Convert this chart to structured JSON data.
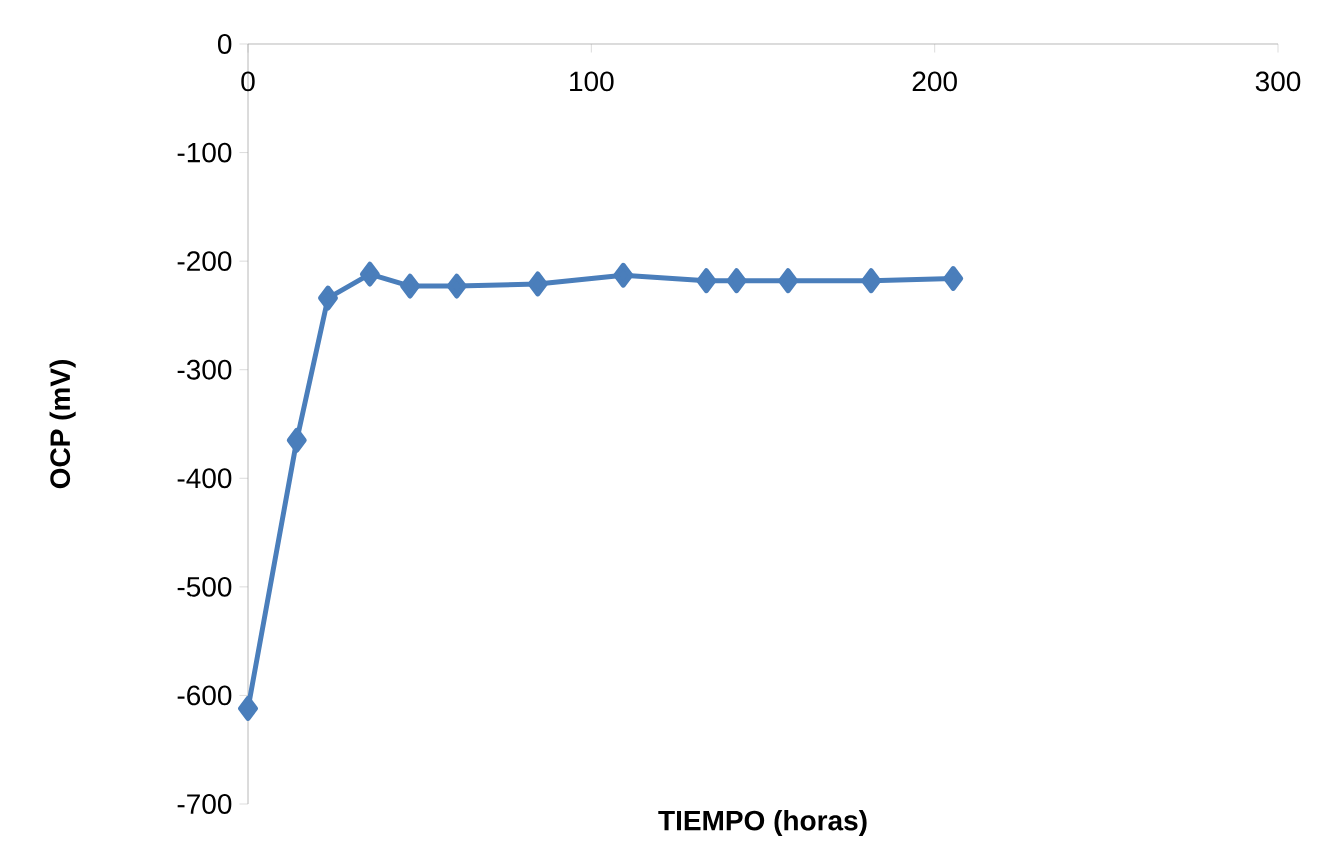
{
  "chart_data": {
    "type": "line",
    "xlabel": "TIEMPO (horas)",
    "ylabel": "OCP  (mV)",
    "x": [
      0,
      14.2,
      23.3,
      35.5,
      47.2,
      60.8,
      84.4,
      109.3,
      133.5,
      142.3,
      157.3,
      181.5,
      205.4
    ],
    "series": [
      {
        "color": "#4a7ebb",
        "values": [
          -612,
          -365,
          -234,
          -212,
          -223,
          -223,
          -221,
          -213,
          -218,
          -218,
          -218,
          -218,
          -216
        ]
      }
    ],
    "xlim": [
      0,
      300
    ],
    "ylim": [
      -700,
      0
    ],
    "xticks": [
      0,
      100,
      200,
      300
    ],
    "yticks": [
      -700,
      -600,
      -500,
      -400,
      -300,
      -200,
      -100,
      0
    ],
    "grid": false,
    "marker": "diamond",
    "line_style": "solid"
  }
}
